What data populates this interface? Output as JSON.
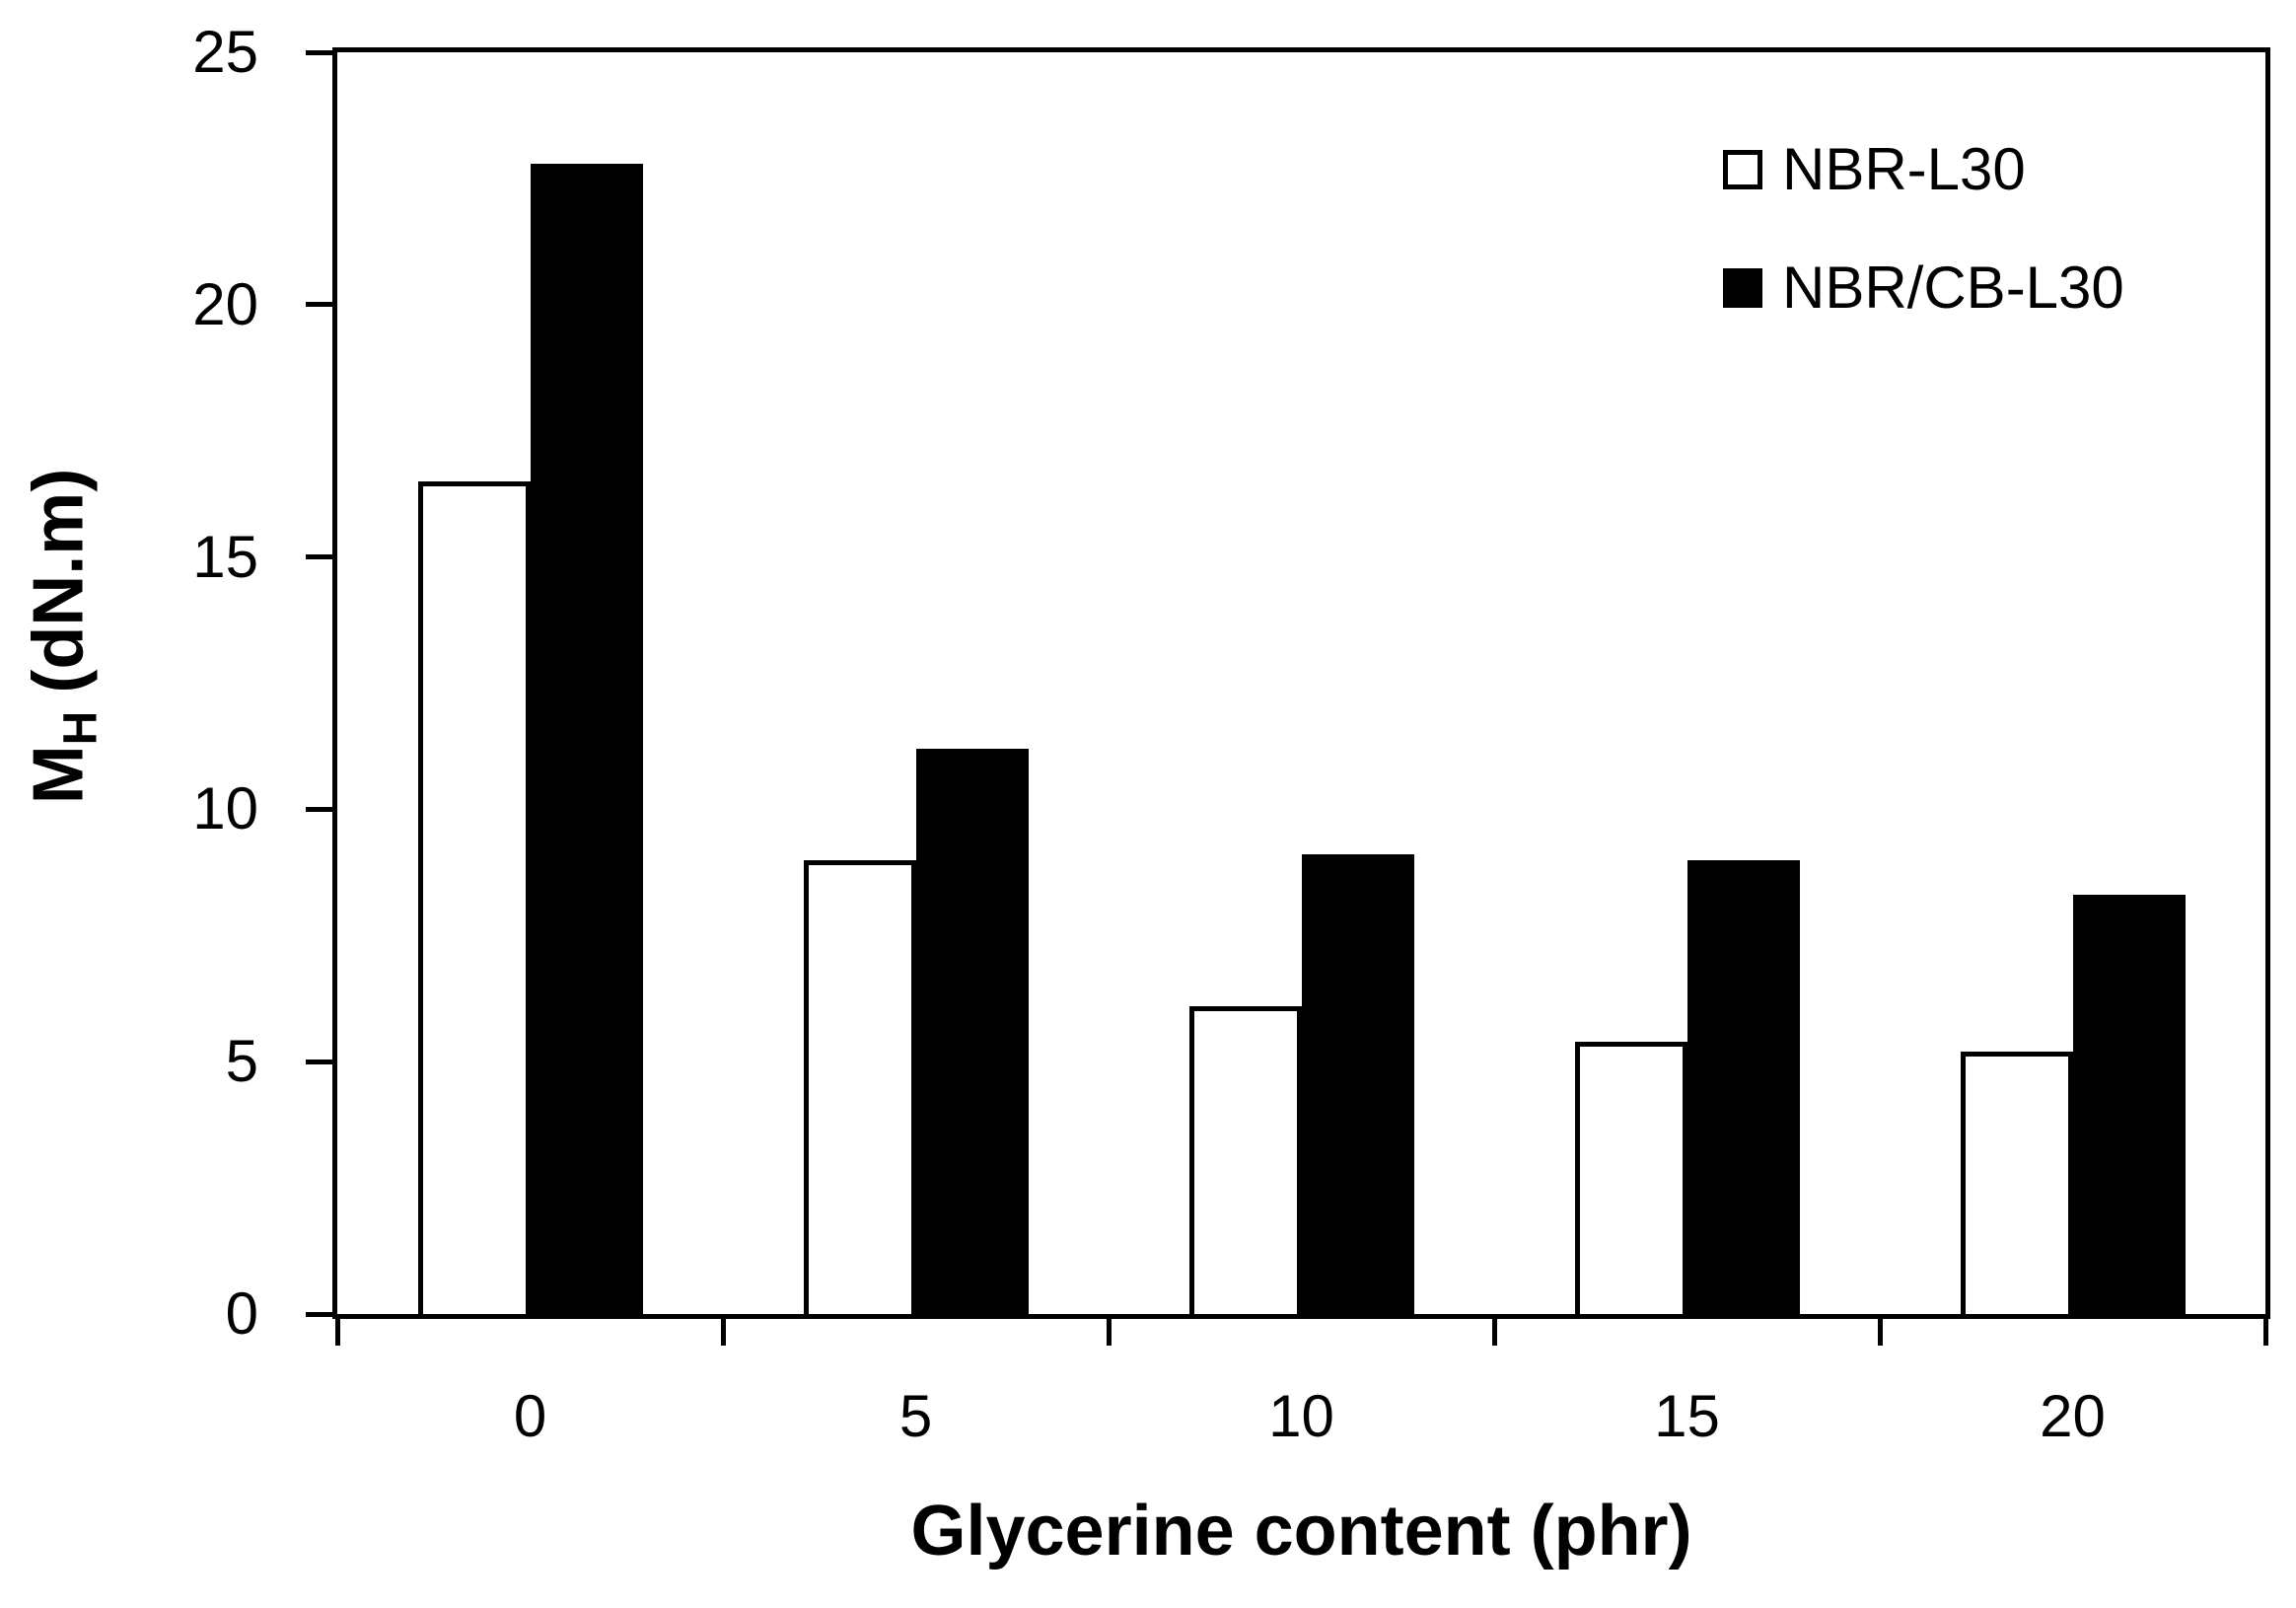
{
  "figure": {
    "background": "#ffffff",
    "foreground": "#000000"
  },
  "chart_data": {
    "type": "bar",
    "title": "",
    "xlabel": "Glycerine content (phr)",
    "ylabel": "MH (dN.m)",
    "ylabel_parts": {
      "main": "M",
      "sub": "H",
      "rest": "(dN.m)"
    },
    "categories": [
      "0",
      "5",
      "10",
      "15",
      "20"
    ],
    "series": [
      {
        "name": "NBR-L30",
        "fill": "#ffffff",
        "stroke": "#000000",
        "values": [
          16.5,
          9.0,
          6.1,
          5.4,
          5.2
        ]
      },
      {
        "name": "NBR/CB-L30",
        "fill": "#000000",
        "stroke": "#000000",
        "values": [
          22.8,
          11.2,
          9.1,
          9.0,
          8.3
        ]
      }
    ],
    "y_axis": {
      "min": 0,
      "max": 25,
      "tick_step": 5,
      "ticks": [
        0,
        5,
        10,
        15,
        20,
        25
      ]
    },
    "x_axis": {
      "boundary_ticks": 6
    },
    "legend": {
      "position": "top-right",
      "entries": [
        "NBR-L30",
        "NBR/CB-L30"
      ]
    },
    "grid": false
  }
}
